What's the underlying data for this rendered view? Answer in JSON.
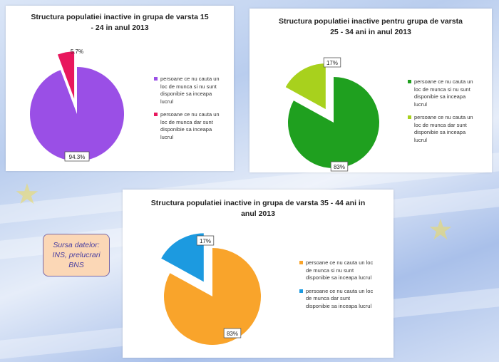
{
  "source_lines": [
    "Sursa datelor:",
    "INS, prelucrari",
    "BNS"
  ],
  "chart_data": [
    {
      "type": "pie",
      "title_lines": [
        "Structura populatiei inactive in grupa de varsta 15",
        "- 24 in anul 2013"
      ],
      "slices": [
        {
          "label_lines": [
            "persoane ce nu cauta un",
            "loc de munca si nu sunt",
            "disponibie sa inceapa",
            "lucrul"
          ],
          "value": 94.3,
          "value_label": "94.3%",
          "color": "#9a4fe6",
          "exploded": false
        },
        {
          "label_lines": [
            "persoane ce nu cauta un",
            "loc de munca dar sunt",
            "disponibie sa inceapa",
            "lucrul"
          ],
          "value": 5.7,
          "value_label": "5.7%",
          "color": "#e8175d",
          "exploded": true
        }
      ],
      "legend": "right"
    },
    {
      "type": "pie",
      "title_lines": [
        "Structura populatiei inactive pentru grupa de varsta",
        "25 - 34 ani in anul 2013"
      ],
      "slices": [
        {
          "label_lines": [
            "persoane ce nu cauta un",
            "loc de munca si nu sunt",
            "disponibie sa inceapa",
            "lucrul"
          ],
          "value": 83,
          "value_label": "83%",
          "color": "#1fa01f",
          "exploded": false
        },
        {
          "label_lines": [
            "persoane ce nu cauta un",
            "loc de munca dar sunt",
            "disponibie sa inceapa",
            "lucrul"
          ],
          "value": 17,
          "value_label": "17%",
          "color": "#a8d11d",
          "exploded": true
        }
      ],
      "legend": "right"
    },
    {
      "type": "pie",
      "title_lines": [
        "Structura populatiei inactive in grupa de varsta 35 - 44 ani in",
        "anul 2013"
      ],
      "slices": [
        {
          "label_lines": [
            "persoane ce nu cauta un loc",
            "de munca si nu sunt",
            "disponibie sa inceapa lucrul"
          ],
          "value": 83,
          "value_label": "83%",
          "color": "#f9a42b",
          "exploded": false
        },
        {
          "label_lines": [
            "persoane ce nu cauta un loc",
            "de munca dar sunt",
            "disponibie sa inceapa lucrul"
          ],
          "value": 17,
          "value_label": "17%",
          "color": "#1c9ae0",
          "exploded": true
        }
      ],
      "legend": "right"
    }
  ]
}
